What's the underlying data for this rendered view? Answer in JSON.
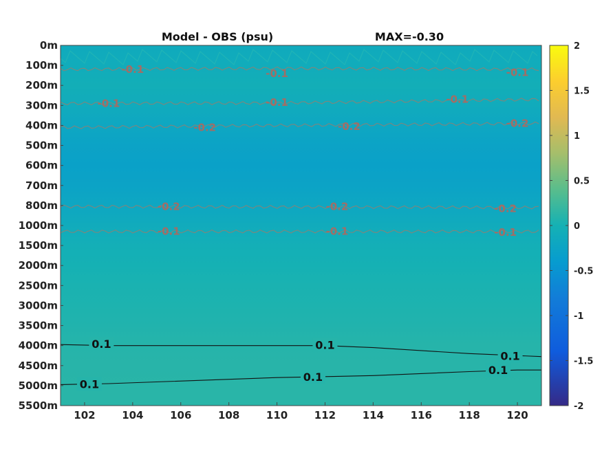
{
  "chart_data": {
    "type": "heatmap",
    "title": "Model - OBS (psu)",
    "max_label": "MAX=-0.30",
    "xlim": [
      101,
      121
    ],
    "x_ticks": [
      102,
      104,
      106,
      108,
      110,
      112,
      114,
      116,
      118,
      120
    ],
    "y_tick_labels": [
      "0m",
      "100m",
      "200m",
      "300m",
      "400m",
      "500m",
      "600m",
      "700m",
      "800m",
      "1000m",
      "1500m",
      "2000m",
      "2500m",
      "3000m",
      "3500m",
      "4000m",
      "4500m",
      "5000m",
      "5500m"
    ],
    "colorbar": {
      "range": [
        -2,
        2
      ],
      "ticks": [
        "2",
        "1.5",
        "1",
        "0.5",
        "0",
        "-0.5",
        "-1",
        "-1.5",
        "-2"
      ],
      "colormap": "parula"
    },
    "field_profile": [
      {
        "level": 0,
        "value": -0.14
      },
      {
        "level": 1,
        "value": -0.1
      },
      {
        "level": 2,
        "value": -0.05
      },
      {
        "level": 3,
        "value": -0.12
      },
      {
        "level": 4,
        "value": -0.2
      },
      {
        "level": 5,
        "value": -0.27
      },
      {
        "level": 6,
        "value": -0.3
      },
      {
        "level": 7,
        "value": -0.27
      },
      {
        "level": 8,
        "value": -0.2
      },
      {
        "level": 9,
        "value": -0.12
      },
      {
        "level": 10,
        "value": -0.04
      },
      {
        "level": 11,
        "value": 0.0
      },
      {
        "level": 12,
        "value": 0.03
      },
      {
        "level": 13,
        "value": 0.05
      },
      {
        "level": 14,
        "value": 0.07
      },
      {
        "level": 15,
        "value": 0.1
      },
      {
        "level": 16,
        "value": 0.11
      },
      {
        "level": 17,
        "value": 0.12
      },
      {
        "level": 18,
        "value": 0.12
      }
    ],
    "contours": [
      {
        "value": -0.1,
        "points": [
          [
            101,
            1.2
          ],
          [
            110,
            1.15
          ],
          [
            121,
            1.2
          ]
        ],
        "labels": [
          {
            "x": 104,
            "y": 1.2,
            "text": "-0.1"
          },
          {
            "x": 110,
            "y": 1.4,
            "text": "-0.1"
          },
          {
            "x": 120,
            "y": 1.35,
            "text": "-0.1"
          }
        ]
      },
      {
        "value": -0.1,
        "points": [
          [
            101,
            2.9
          ],
          [
            110,
            2.88
          ],
          [
            121,
            2.7
          ]
        ],
        "labels": [
          {
            "x": 103,
            "y": 2.9,
            "text": "-0.1"
          },
          {
            "x": 110,
            "y": 2.85,
            "text": "-0.1"
          },
          {
            "x": 117.5,
            "y": 2.7,
            "text": "-0.1"
          }
        ]
      },
      {
        "value": -0.2,
        "points": [
          [
            101,
            4.1
          ],
          [
            110,
            4.0
          ],
          [
            121,
            3.9
          ]
        ],
        "labels": [
          {
            "x": 107,
            "y": 4.1,
            "text": "-0.2"
          },
          {
            "x": 113,
            "y": 4.05,
            "text": "-0.2"
          },
          {
            "x": 120,
            "y": 3.9,
            "text": "-0.2"
          }
        ]
      },
      {
        "value": -0.2,
        "points": [
          [
            101,
            8.05
          ],
          [
            121,
            8.1
          ]
        ],
        "labels": [
          {
            "x": 105.5,
            "y": 8.05,
            "text": "-0.2"
          },
          {
            "x": 112.5,
            "y": 8.05,
            "text": "-0.2"
          },
          {
            "x": 119.5,
            "y": 8.15,
            "text": "-0.2"
          }
        ]
      },
      {
        "value": -0.1,
        "points": [
          [
            101,
            9.3
          ],
          [
            121,
            9.3
          ]
        ],
        "labels": [
          {
            "x": 105.5,
            "y": 9.3,
            "text": "-0.1"
          },
          {
            "x": 112.5,
            "y": 9.3,
            "text": "-0.1"
          },
          {
            "x": 119.5,
            "y": 9.35,
            "text": "-0.1"
          }
        ]
      },
      {
        "value": 0.1,
        "points": [
          [
            101,
            14.95
          ],
          [
            103,
            15.0
          ],
          [
            110,
            15.0
          ],
          [
            112,
            15.0
          ],
          [
            114,
            15.1
          ],
          [
            118,
            15.4
          ],
          [
            120,
            15.5
          ],
          [
            121,
            15.55
          ]
        ],
        "labels": [
          {
            "x": 102.7,
            "y": 14.95,
            "text": "0.1"
          },
          {
            "x": 112,
            "y": 15.0,
            "text": "0.1"
          },
          {
            "x": 119.7,
            "y": 15.55,
            "text": "0.1"
          }
        ]
      },
      {
        "value": 0.1,
        "points": [
          [
            101,
            16.95
          ],
          [
            103,
            16.9
          ],
          [
            110,
            16.6
          ],
          [
            112,
            16.55
          ],
          [
            114,
            16.5
          ],
          [
            118,
            16.3
          ],
          [
            120,
            16.22
          ],
          [
            121,
            16.22
          ]
        ],
        "labels": [
          {
            "x": 102.2,
            "y": 16.95,
            "text": "0.1"
          },
          {
            "x": 111.5,
            "y": 16.6,
            "text": "0.1"
          },
          {
            "x": 119.2,
            "y": 16.25,
            "text": "0.1"
          }
        ]
      }
    ]
  }
}
